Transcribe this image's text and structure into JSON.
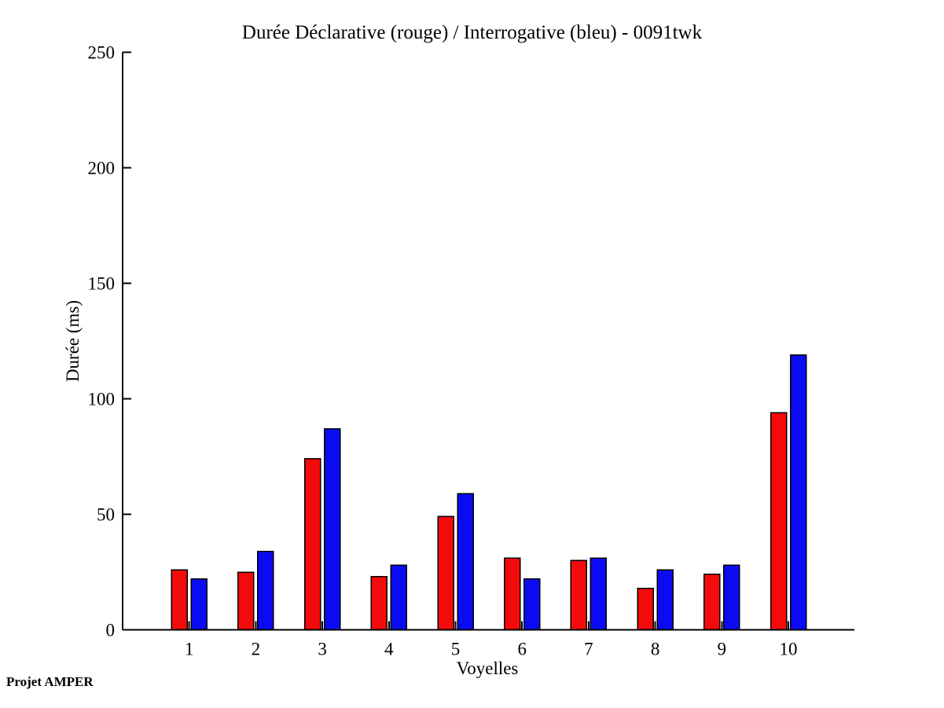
{
  "page": {
    "background_color": "#ffffff",
    "axis_color": "#000000"
  },
  "footer": {
    "credit": "Projet AMPER"
  },
  "chart_data": {
    "type": "bar",
    "title": "Durée Déclarative (rouge) / Interrogative (bleu) - 0091twk",
    "xlabel": "Voyelles",
    "ylabel": "Durée (ms)",
    "categories": [
      "1",
      "2",
      "3",
      "4",
      "5",
      "6",
      "7",
      "8",
      "9",
      "10"
    ],
    "series": [
      {
        "name": "Déclarative",
        "color_name": "rouge",
        "color": "#f30b0b",
        "values": [
          26,
          25,
          74,
          23,
          49,
          31,
          30,
          18,
          24,
          94
        ]
      },
      {
        "name": "Interrogative",
        "color_name": "bleu",
        "color": "#0b0bf3",
        "values": [
          22,
          34,
          87,
          28,
          59,
          22,
          31,
          26,
          28,
          119
        ]
      }
    ],
    "ylim": [
      0,
      250
    ],
    "yticks": [
      0,
      50,
      100,
      150,
      200,
      250
    ],
    "grid": false,
    "legend": "none",
    "bar_outline_color": "#000000"
  }
}
